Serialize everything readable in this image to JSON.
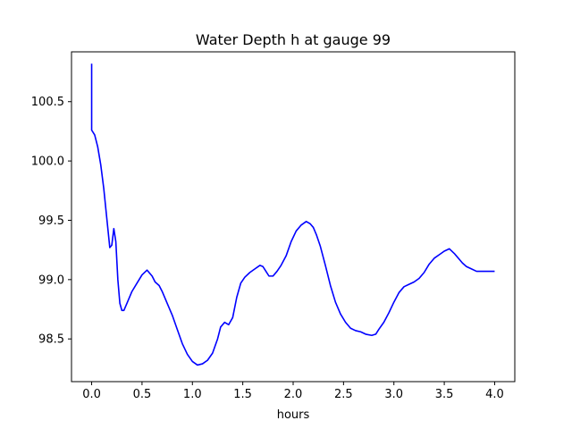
{
  "chart_data": {
    "type": "line",
    "title": "Water Depth h at gauge 99",
    "xlabel": "hours",
    "ylabel": "",
    "xlim": [
      -0.2,
      4.2
    ],
    "ylim": [
      98.14,
      100.92
    ],
    "xticks": [
      0.0,
      0.5,
      1.0,
      1.5,
      2.0,
      2.5,
      3.0,
      3.5,
      4.0
    ],
    "xtick_labels": [
      "0.0",
      "0.5",
      "1.0",
      "1.5",
      "2.0",
      "2.5",
      "3.0",
      "3.5",
      "4.0"
    ],
    "yticks": [
      98.5,
      99.0,
      99.5,
      100.0,
      100.5
    ],
    "ytick_labels": [
      "98.5",
      "99.0",
      "99.5",
      "100.0",
      "100.5"
    ],
    "grid": false,
    "series": [
      {
        "color": "#0000ff",
        "x": [
          0.0,
          0.0,
          0.0,
          0.03,
          0.06,
          0.09,
          0.12,
          0.15,
          0.18,
          0.2,
          0.22,
          0.24,
          0.26,
          0.28,
          0.3,
          0.32,
          0.35,
          0.4,
          0.45,
          0.5,
          0.55,
          0.6,
          0.63,
          0.67,
          0.7,
          0.75,
          0.8,
          0.85,
          0.9,
          0.95,
          1.0,
          1.05,
          1.1,
          1.15,
          1.2,
          1.25,
          1.28,
          1.32,
          1.36,
          1.4,
          1.44,
          1.48,
          1.52,
          1.57,
          1.62,
          1.67,
          1.7,
          1.73,
          1.76,
          1.8,
          1.84,
          1.88,
          1.93,
          1.98,
          2.03,
          2.08,
          2.13,
          2.17,
          2.2,
          2.23,
          2.27,
          2.32,
          2.37,
          2.42,
          2.47,
          2.52,
          2.57,
          2.62,
          2.67,
          2.72,
          2.78,
          2.82,
          2.85,
          2.9,
          2.95,
          3.0,
          3.05,
          3.1,
          3.15,
          3.2,
          3.25,
          3.3,
          3.35,
          3.4,
          3.45,
          3.5,
          3.55,
          3.6,
          3.65,
          3.68,
          3.72,
          3.77,
          3.82,
          3.87,
          3.92,
          3.97,
          4.0
        ],
        "y": [
          100.82,
          100.27,
          100.26,
          100.22,
          100.12,
          99.97,
          99.77,
          99.52,
          99.27,
          99.29,
          99.43,
          99.32,
          99.0,
          98.8,
          98.74,
          98.74,
          98.8,
          98.9,
          98.97,
          99.04,
          99.08,
          99.03,
          98.98,
          98.95,
          98.9,
          98.8,
          98.7,
          98.58,
          98.46,
          98.37,
          98.31,
          98.28,
          98.29,
          98.32,
          98.38,
          98.5,
          98.6,
          98.64,
          98.62,
          98.68,
          98.85,
          98.97,
          99.02,
          99.06,
          99.09,
          99.12,
          99.11,
          99.07,
          99.03,
          99.03,
          99.07,
          99.12,
          99.2,
          99.32,
          99.41,
          99.46,
          99.49,
          99.47,
          99.44,
          99.38,
          99.28,
          99.12,
          98.95,
          98.81,
          98.71,
          98.64,
          98.59,
          98.57,
          98.56,
          98.54,
          98.53,
          98.54,
          98.58,
          98.64,
          98.72,
          98.81,
          98.89,
          98.94,
          98.96,
          98.98,
          99.01,
          99.06,
          99.13,
          99.18,
          99.21,
          99.24,
          99.26,
          99.22,
          99.17,
          99.14,
          99.11,
          99.09,
          99.07,
          99.07,
          99.07,
          99.07,
          99.07
        ]
      }
    ]
  }
}
